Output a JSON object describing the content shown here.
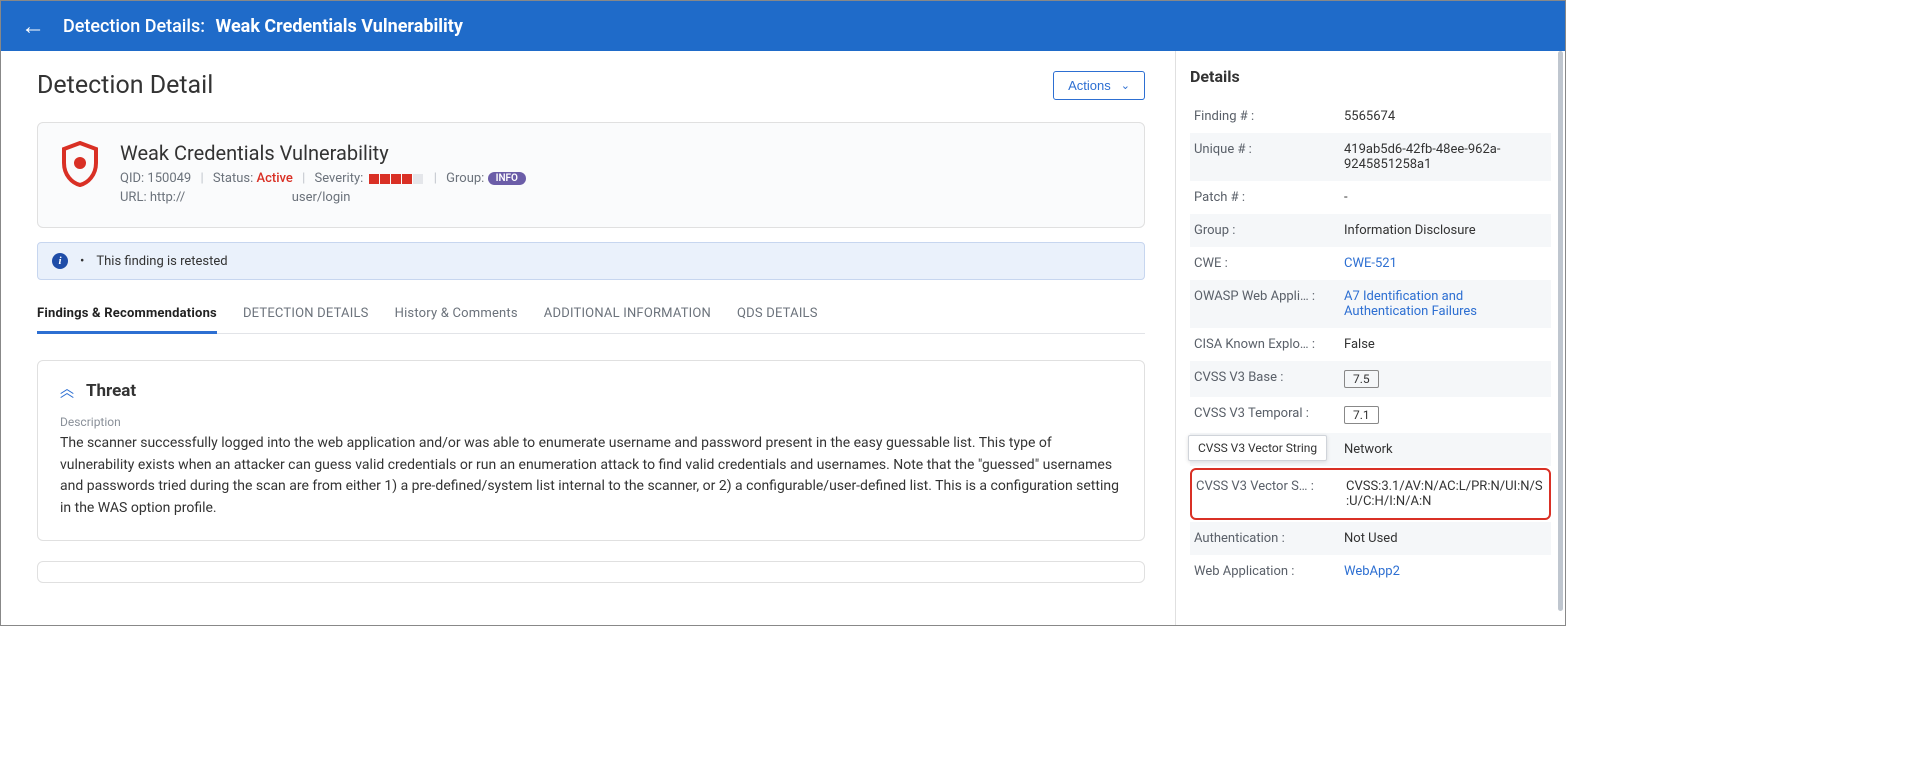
{
  "topbar": {
    "prefix": "Detection Details:",
    "title": "Weak Credentials Vulnerability"
  },
  "page_heading": "Detection Detail",
  "actions_label": "Actions",
  "summary": {
    "title": "Weak Credentials Vulnerability",
    "qid_label": "QID:",
    "qid": "150049",
    "status_label": "Status:",
    "status": "Active",
    "severity_label": "Severity:",
    "severity_filled": 4,
    "severity_total": 5,
    "group_label": "Group:",
    "group_badge": "INFO",
    "url_label": "URL:",
    "url_prefix": "http://",
    "url_suffix": "user/login"
  },
  "retested": {
    "bullet": "•",
    "text": "This finding is retested"
  },
  "tabs": [
    {
      "label": "Findings & Recommendations",
      "active": true
    },
    {
      "label": "DETECTION DETAILS",
      "active": false
    },
    {
      "label": "History & Comments",
      "active": false
    },
    {
      "label": "ADDITIONAL INFORMATION",
      "active": false
    },
    {
      "label": "QDS DETAILS",
      "active": false
    }
  ],
  "threat": {
    "heading": "Threat",
    "desc_label": "Description",
    "desc": "The scanner successfully logged into the web application and/or was able to enumerate username and password present in the easy guessable list. This type of vulnerability exists when an attacker can guess valid credentials or run an enumeration attack to find valid credentials and usernames. Note that the \"guessed\" usernames and passwords tried during the scan are from either 1) a pre-defined/system list internal to the scanner, or 2) a configurable/user-defined list. This is a configuration setting in the WAS option profile."
  },
  "details_title": "Details",
  "details": [
    {
      "label": "Finding #",
      "value": "5565674",
      "alt": false
    },
    {
      "label": "Unique #",
      "value": "419ab5d6-42fb-48ee-962a-9245851258a1",
      "alt": true
    },
    {
      "label": "Patch #",
      "value": "-",
      "alt": false
    },
    {
      "label": "Group",
      "value": "Information Disclosure",
      "alt": true
    },
    {
      "label": "CWE",
      "value": "CWE-521",
      "alt": false,
      "link": true
    },
    {
      "label": "OWASP Web Appli…",
      "value": "A7 Identification and Authentication Failures",
      "alt": true,
      "link": true
    },
    {
      "label": "CISA Known Explo…",
      "value": "False",
      "alt": false
    },
    {
      "label": "CVSS V3 Base",
      "value": "7.5",
      "alt": true,
      "box": true
    },
    {
      "label": "CVSS V3 Temporal",
      "value": "7.1",
      "alt": false,
      "box": true
    },
    {
      "label": "",
      "value": "Network",
      "alt": true,
      "tooltip": "CVSS V3 Vector String"
    },
    {
      "label": "CVSS V3 Vector S…",
      "value": "CVSS:3.1/AV:N/AC:L/PR:N/UI:N/S:U/C:H/I:N/A:N",
      "alt": false,
      "highlight": true
    },
    {
      "label": "Authentication",
      "value": "Not Used",
      "alt": true
    },
    {
      "label": "Web Application",
      "value": "WebApp2",
      "alt": false,
      "link": true
    }
  ],
  "colors": {
    "header_bg": "#1f6bc9",
    "accent": "#2d6fd2",
    "danger": "#d93025",
    "badge": "#6b5da8"
  }
}
